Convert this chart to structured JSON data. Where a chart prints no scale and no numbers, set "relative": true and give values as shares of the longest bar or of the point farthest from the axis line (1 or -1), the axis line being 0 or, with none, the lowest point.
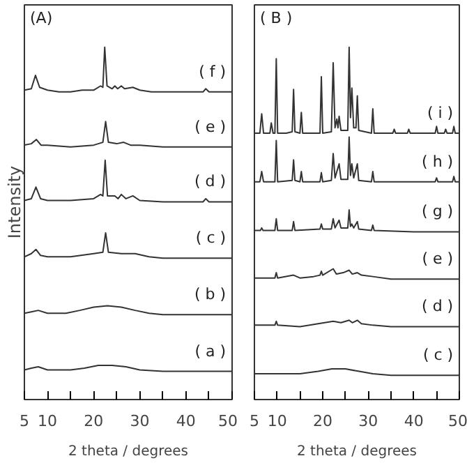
{
  "chart_data": [
    {
      "type": "line",
      "relative": true,
      "xlabel": "2 theta / degrees",
      "ylabel": "Intensity",
      "annotations": [
        "(A)"
      ],
      "xlim": [
        5,
        50
      ],
      "xticks": [
        5,
        10,
        {
          "value": 15,
          "label": null
        },
        20,
        {
          "value": 25,
          "label": null
        },
        30,
        {
          "value": 35,
          "label": null
        },
        40,
        {
          "value": 45,
          "label": null
        },
        50
      ],
      "tick_labels": "x",
      "grid": false,
      "marker": "none",
      "line_style": "solid",
      "series": [
        {
          "name": "( f )",
          "color": "#333333",
          "x": [
            5,
            6.5,
            7.4,
            8.3,
            10,
            12.5,
            15,
            17.5,
            20,
            21.5,
            22.0,
            22.4,
            22.9,
            24,
            24.6,
            25.2,
            26,
            26.7,
            28.5,
            30,
            32.5,
            35,
            40,
            43.7,
            44.3,
            45,
            50
          ],
          "values": [
            0.878,
            0.882,
            0.92,
            0.886,
            0.878,
            0.873,
            0.873,
            0.878,
            0.878,
            0.89,
            0.886,
            1.0,
            0.89,
            0.882,
            0.89,
            0.882,
            0.89,
            0.882,
            0.886,
            0.878,
            0.873,
            0.873,
            0.873,
            0.873,
            0.882,
            0.873,
            0.873
          ]
        },
        {
          "name": "( e )",
          "color": "#333333",
          "x": [
            5,
            6.5,
            7.6,
            8.6,
            10,
            15,
            20,
            22.0,
            22.6,
            23.2,
            25,
            26.5,
            28,
            30,
            35,
            40,
            45,
            50
          ],
          "values": [
            0.722,
            0.726,
            0.738,
            0.722,
            0.722,
            0.717,
            0.722,
            0.73,
            0.789,
            0.73,
            0.726,
            0.73,
            0.722,
            0.722,
            0.717,
            0.717,
            0.717,
            0.717
          ]
        },
        {
          "name": "( d )",
          "color": "#333333",
          "x": [
            5,
            6.5,
            7.5,
            8.5,
            10,
            15,
            20,
            21.5,
            22.0,
            22.5,
            23.0,
            24.6,
            25.3,
            26,
            27,
            28.5,
            30,
            35,
            40,
            43.7,
            44.3,
            45,
            50
          ],
          "values": [
            0.565,
            0.57,
            0.603,
            0.57,
            0.565,
            0.565,
            0.57,
            0.582,
            0.578,
            0.679,
            0.578,
            0.578,
            0.57,
            0.582,
            0.57,
            0.578,
            0.565,
            0.561,
            0.561,
            0.561,
            0.57,
            0.561,
            0.561
          ]
        },
        {
          "name": "( c )",
          "color": "#333333",
          "x": [
            5,
            6.5,
            7.5,
            8.5,
            10,
            15,
            20,
            22.0,
            22.6,
            23.2,
            26,
            29,
            32,
            35,
            40,
            45,
            50
          ],
          "values": [
            0.405,
            0.414,
            0.426,
            0.409,
            0.405,
            0.405,
            0.414,
            0.418,
            0.473,
            0.418,
            0.414,
            0.414,
            0.405,
            0.401,
            0.401,
            0.401,
            0.401
          ]
        },
        {
          "name": "( b )",
          "color": "#333333",
          "x": [
            5,
            6.5,
            8,
            10,
            14,
            17,
            20,
            23,
            26,
            29,
            32,
            35,
            40,
            45,
            50
          ],
          "values": [
            0.245,
            0.249,
            0.253,
            0.245,
            0.245,
            0.253,
            0.262,
            0.266,
            0.262,
            0.253,
            0.245,
            0.241,
            0.241,
            0.241,
            0.241
          ]
        },
        {
          "name": "( a )",
          "color": "#333333",
          "x": [
            5,
            6.5,
            8,
            10,
            15,
            18,
            21,
            24,
            27,
            30,
            35,
            40,
            45,
            50
          ],
          "values": [
            0.084,
            0.089,
            0.093,
            0.084,
            0.084,
            0.089,
            0.097,
            0.097,
            0.093,
            0.084,
            0.08,
            0.08,
            0.08,
            0.08
          ]
        }
      ]
    },
    {
      "type": "line",
      "relative": true,
      "xlabel": "2 theta / degrees",
      "annotations": [
        "( B )"
      ],
      "xlim": [
        5,
        50
      ],
      "xticks": [
        5,
        10,
        {
          "value": 15,
          "label": null
        },
        20,
        {
          "value": 25,
          "label": null
        },
        30,
        {
          "value": 35,
          "label": null
        },
        40,
        {
          "value": 45,
          "label": null
        },
        50
      ],
      "tick_labels": "x",
      "grid": false,
      "marker": "none",
      "line_style": "solid",
      "series": [
        {
          "name": "( i )",
          "color": "#333333",
          "x": [
            5,
            6.2,
            6.6,
            7.0,
            8.4,
            8.7,
            9.1,
            9.5,
            9.8,
            10.1,
            12,
            13.3,
            13.6,
            13.9,
            15.0,
            15.3,
            15.6,
            18,
            19.4,
            19.7,
            20.0,
            21.9,
            22.3,
            22.7,
            23.1,
            23.35,
            23.6,
            24.0,
            25.5,
            25.8,
            26.1,
            26.4,
            26.8,
            27.3,
            27.6,
            27.9,
            30.7,
            31.0,
            31.3,
            35.4,
            35.7,
            36,
            38.6,
            38.9,
            39.2,
            44.7,
            45,
            45.3,
            46.7,
            47,
            47.3,
            48.5,
            48.8,
            49.1,
            50
          ],
          "values": [
            0.756,
            0.756,
            0.811,
            0.756,
            0.756,
            0.785,
            0.756,
            0.756,
            0.967,
            0.756,
            0.756,
            0.76,
            0.88,
            0.76,
            0.756,
            0.815,
            0.756,
            0.756,
            0.756,
            0.916,
            0.756,
            0.76,
            0.956,
            0.771,
            0.796,
            0.771,
            0.804,
            0.764,
            0.764,
            1.0,
            0.8,
            0.884,
            0.771,
            0.771,
            0.862,
            0.764,
            0.756,
            0.825,
            0.756,
            0.756,
            0.767,
            0.756,
            0.756,
            0.767,
            0.756,
            0.756,
            0.775,
            0.756,
            0.756,
            0.767,
            0.756,
            0.756,
            0.775,
            0.756,
            0.756
          ]
        },
        {
          "name": "( h )",
          "color": "#333333",
          "x": [
            5,
            6.2,
            6.6,
            7.0,
            9.5,
            9.8,
            10.1,
            13.3,
            13.6,
            13.9,
            15.0,
            15.3,
            15.6,
            19.4,
            19.7,
            20.0,
            21.9,
            22.3,
            22.7,
            23.6,
            24.0,
            25.5,
            25.8,
            26.1,
            26.4,
            26.8,
            27.6,
            27.9,
            30.7,
            31.0,
            31.3,
            44.7,
            45,
            45.3,
            48.5,
            48.8,
            49.1,
            50
          ],
          "values": [
            0.618,
            0.618,
            0.647,
            0.618,
            0.618,
            0.735,
            0.618,
            0.622,
            0.68,
            0.622,
            0.618,
            0.647,
            0.618,
            0.618,
            0.644,
            0.618,
            0.622,
            0.698,
            0.629,
            0.669,
            0.625,
            0.625,
            0.745,
            0.636,
            0.669,
            0.629,
            0.669,
            0.622,
            0.618,
            0.647,
            0.618,
            0.618,
            0.629,
            0.618,
            0.618,
            0.633,
            0.618,
            0.618
          ]
        },
        {
          "name": "( g )",
          "color": "#333333",
          "x": [
            5,
            6.3,
            6.6,
            6.9,
            9.5,
            9.8,
            10.1,
            13.3,
            13.6,
            13.9,
            19.4,
            19.7,
            20.0,
            21.9,
            22.3,
            22.7,
            23.6,
            24.0,
            25.5,
            25.8,
            26.1,
            26.4,
            26.8,
            27.6,
            27.9,
            30.7,
            31.0,
            31.3,
            40,
            50
          ],
          "values": [
            0.48,
            0.48,
            0.487,
            0.48,
            0.48,
            0.513,
            0.48,
            0.48,
            0.505,
            0.48,
            0.484,
            0.498,
            0.484,
            0.484,
            0.513,
            0.487,
            0.509,
            0.487,
            0.487,
            0.538,
            0.491,
            0.498,
            0.487,
            0.505,
            0.484,
            0.48,
            0.495,
            0.48,
            0.476,
            0.476
          ]
        },
        {
          "name": "( e )",
          "color": "#333333",
          "x": [
            5,
            9.5,
            9.8,
            10.1,
            13.6,
            15,
            18,
            19.4,
            19.7,
            20,
            22.3,
            23,
            24.5,
            25.8,
            26.5,
            27.6,
            28.5,
            31,
            35,
            40,
            50
          ],
          "values": [
            0.345,
            0.345,
            0.36,
            0.345,
            0.353,
            0.345,
            0.349,
            0.353,
            0.364,
            0.353,
            0.371,
            0.356,
            0.36,
            0.367,
            0.356,
            0.36,
            0.353,
            0.349,
            0.342,
            0.342,
            0.342
          ]
        },
        {
          "name": "( d )",
          "color": "#333333",
          "x": [
            5,
            9.5,
            9.8,
            10.1,
            15,
            19,
            22.3,
            24,
            25.8,
            26.5,
            27.6,
            28.5,
            31,
            35,
            40,
            50
          ],
          "values": [
            0.211,
            0.211,
            0.222,
            0.211,
            0.207,
            0.215,
            0.222,
            0.218,
            0.225,
            0.218,
            0.225,
            0.215,
            0.211,
            0.207,
            0.207,
            0.207
          ]
        },
        {
          "name": "( c )",
          "color": "#333333",
          "x": [
            5,
            10,
            15,
            19,
            22,
            25,
            28,
            31,
            35,
            40,
            50
          ],
          "values": [
            0.073,
            0.073,
            0.073,
            0.08,
            0.087,
            0.087,
            0.08,
            0.073,
            0.069,
            0.069,
            0.069
          ]
        }
      ]
    }
  ]
}
